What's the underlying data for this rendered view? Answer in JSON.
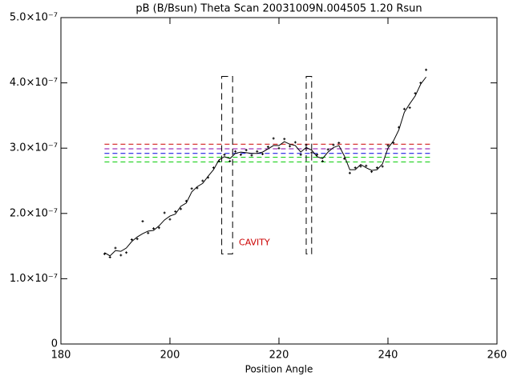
{
  "chart_data": {
    "type": "line",
    "title": "pB (B/Bsun) Theta Scan 20031009N.004505 1.20 Rsun",
    "x_label": "Position Angle",
    "x": [
      188,
      189,
      190,
      191,
      192,
      193,
      194,
      195,
      196,
      197,
      198,
      199,
      200,
      201,
      202,
      203,
      204,
      205,
      206,
      207,
      208,
      209,
      210,
      211,
      212,
      213,
      214,
      215,
      216,
      217,
      218,
      219,
      220,
      221,
      222,
      223,
      224,
      225,
      226,
      227,
      228,
      229,
      230,
      231,
      232,
      233,
      234,
      235,
      236,
      237,
      238,
      239,
      240,
      241,
      242,
      243,
      244,
      245,
      246,
      247
    ],
    "series": [
      {
        "color": "#000000",
        "style": "line",
        "values": [
          1.4e-07,
          1.35e-07,
          1.43e-07,
          1.42e-07,
          1.47e-07,
          1.57e-07,
          1.64e-07,
          1.69e-07,
          1.73e-07,
          1.74e-07,
          1.81e-07,
          1.9e-07,
          1.96e-07,
          1.99e-07,
          2.11e-07,
          2.16e-07,
          2.33e-07,
          2.41e-07,
          2.46e-07,
          2.57e-07,
          2.67e-07,
          2.82e-07,
          2.87e-07,
          2.84e-07,
          2.92e-07,
          2.94e-07,
          2.93e-07,
          2.92e-07,
          2.92e-07,
          2.94e-07,
          2.99e-07,
          3.04e-07,
          3.04e-07,
          3.1e-07,
          3.06e-07,
          3.04e-07,
          2.94e-07,
          3.01e-07,
          2.97e-07,
          2.87e-07,
          2.84e-07,
          2.94e-07,
          3.01e-07,
          3.04e-07,
          2.88e-07,
          2.67e-07,
          2.67e-07,
          2.75e-07,
          2.7e-07,
          2.66e-07,
          2.67e-07,
          2.76e-07,
          3e-07,
          3.11e-07,
          3.28e-07,
          3.55e-07,
          3.68e-07,
          3.8e-07,
          3.98e-07,
          4.09e-07
        ]
      },
      {
        "color": "#000000",
        "style": "points",
        "values": [
          1.38e-07,
          1.33e-07,
          1.47e-07,
          1.36e-07,
          1.4e-07,
          1.6e-07,
          1.61e-07,
          1.88e-07,
          1.7e-07,
          1.77e-07,
          1.78e-07,
          2.01e-07,
          1.91e-07,
          2.03e-07,
          2.07e-07,
          2.19e-07,
          2.38e-07,
          2.39e-07,
          2.5e-07,
          2.55e-07,
          2.7e-07,
          2.8e-07,
          2.9e-07,
          2.8e-07,
          2.95e-07,
          2.9e-07,
          2.97e-07,
          2.89e-07,
          2.95e-07,
          2.91e-07,
          3.02e-07,
          3.15e-07,
          3e-07,
          3.14e-07,
          3.03e-07,
          3.09e-07,
          2.9e-07,
          3.05e-07,
          2.93e-07,
          2.9e-07,
          2.8e-07,
          2.98e-07,
          3.05e-07,
          3.08e-07,
          2.84e-07,
          2.62e-07,
          2.7e-07,
          2.72e-07,
          2.73e-07,
          2.64e-07,
          2.7e-07,
          2.72e-07,
          3.04e-07,
          3.08e-07,
          3.32e-07,
          3.6e-07,
          3.62e-07,
          3.84e-07,
          4e-07,
          4.2e-07
        ]
      }
    ],
    "reference_lines": [
      {
        "value": 3.06e-07,
        "color": "#cc0000"
      },
      {
        "value": 2.99e-07,
        "color": "#8800aa"
      },
      {
        "value": 2.92e-07,
        "color": "#0000dd"
      },
      {
        "value": 2.86e-07,
        "color": "#00cc00"
      },
      {
        "value": 2.79e-07,
        "color": "#00cc00"
      }
    ],
    "reference_xrange": [
      188,
      248
    ],
    "regions": [
      {
        "x": [
          209.5,
          211.5
        ],
        "y": [
          1.38e-07,
          4.1e-07
        ]
      },
      {
        "x": [
          225,
          226
        ],
        "y": [
          1.38e-07,
          4.1e-07
        ]
      }
    ],
    "annotation": {
      "text": "CAVITY",
      "x": 215.5,
      "y": 1.55e-07,
      "color": "#cc0000"
    },
    "xlim": [
      180,
      260
    ],
    "xticks": [
      180,
      200,
      220,
      240,
      260
    ],
    "ylim": [
      0,
      5e-07
    ],
    "yticks": [
      0,
      {
        "value": 1e-07,
        "label": "1.0×10⁻⁷"
      },
      {
        "value": 2e-07,
        "label": "2.0×10⁻⁷"
      },
      {
        "value": 3e-07,
        "label": "3.0×10⁻⁷"
      },
      {
        "value": 4e-07,
        "label": "4.0×10⁻⁷"
      },
      {
        "value": 5e-07,
        "label": "5.0×10⁻⁷"
      }
    ]
  }
}
